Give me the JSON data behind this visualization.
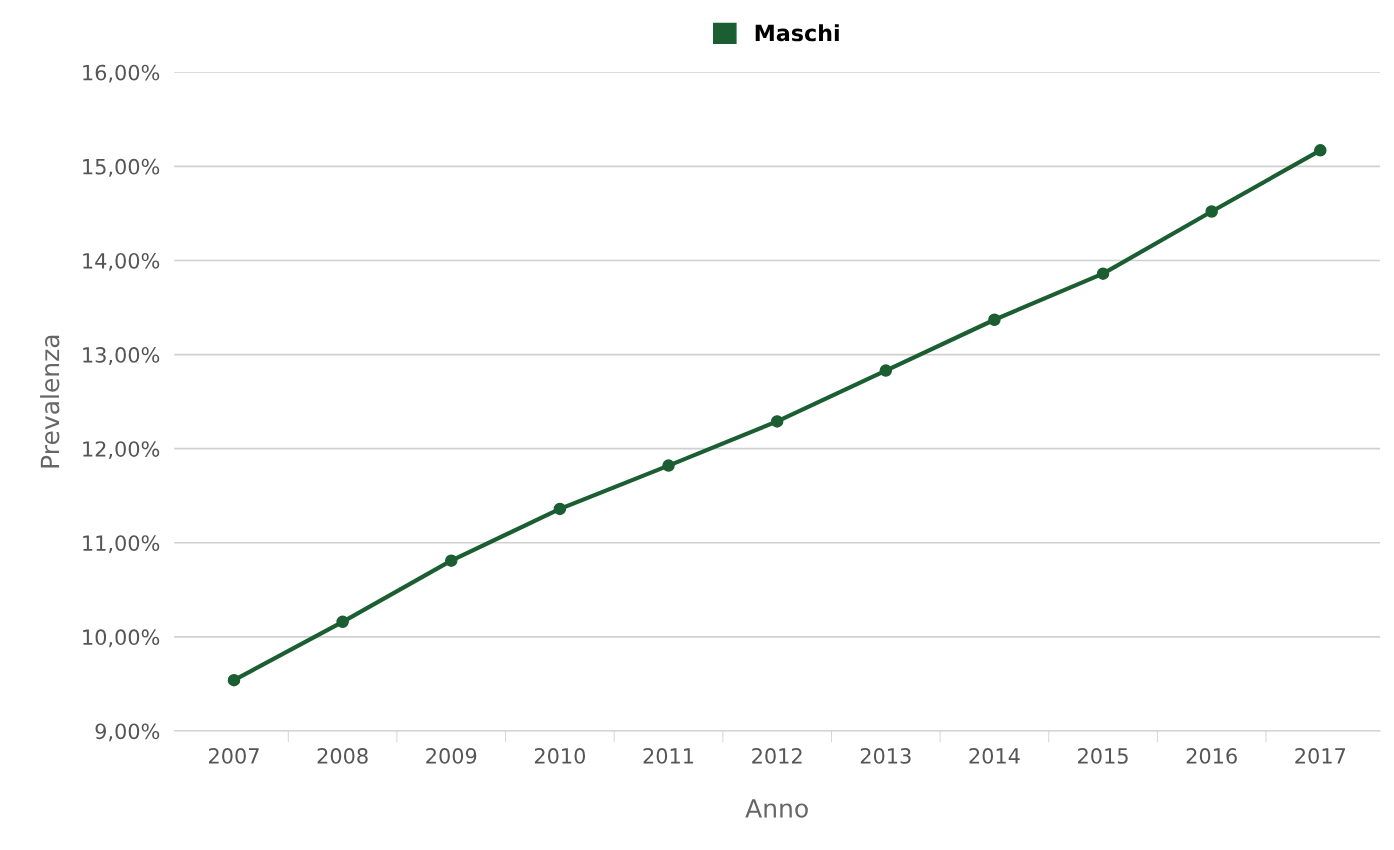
{
  "chart_data": {
    "type": "line",
    "xlabel": "Anno",
    "ylabel": "Prevalenza",
    "categories": [
      "2007",
      "2008",
      "2009",
      "2010",
      "2011",
      "2012",
      "2013",
      "2014",
      "2015",
      "2016",
      "2017"
    ],
    "series": [
      {
        "name": "Maschi",
        "color": "#1b5e32",
        "values": [
          9.54,
          10.16,
          10.81,
          11.36,
          11.82,
          12.29,
          12.83,
          13.37,
          13.86,
          14.52,
          15.17
        ]
      }
    ],
    "ylim": [
      9,
      16
    ],
    "yticks": [
      {
        "value": 9,
        "label": "9,00%"
      },
      {
        "value": 10,
        "label": "10,00%"
      },
      {
        "value": 11,
        "label": "11,00%"
      },
      {
        "value": 12,
        "label": "12,00%"
      },
      {
        "value": 13,
        "label": "13,00%"
      },
      {
        "value": 14,
        "label": "14,00%"
      },
      {
        "value": 15,
        "label": "15,00%"
      },
      {
        "value": 16,
        "label": "16,00%"
      }
    ],
    "grid": "y",
    "legend": "top",
    "marker": "circle",
    "line_style": "solid"
  }
}
